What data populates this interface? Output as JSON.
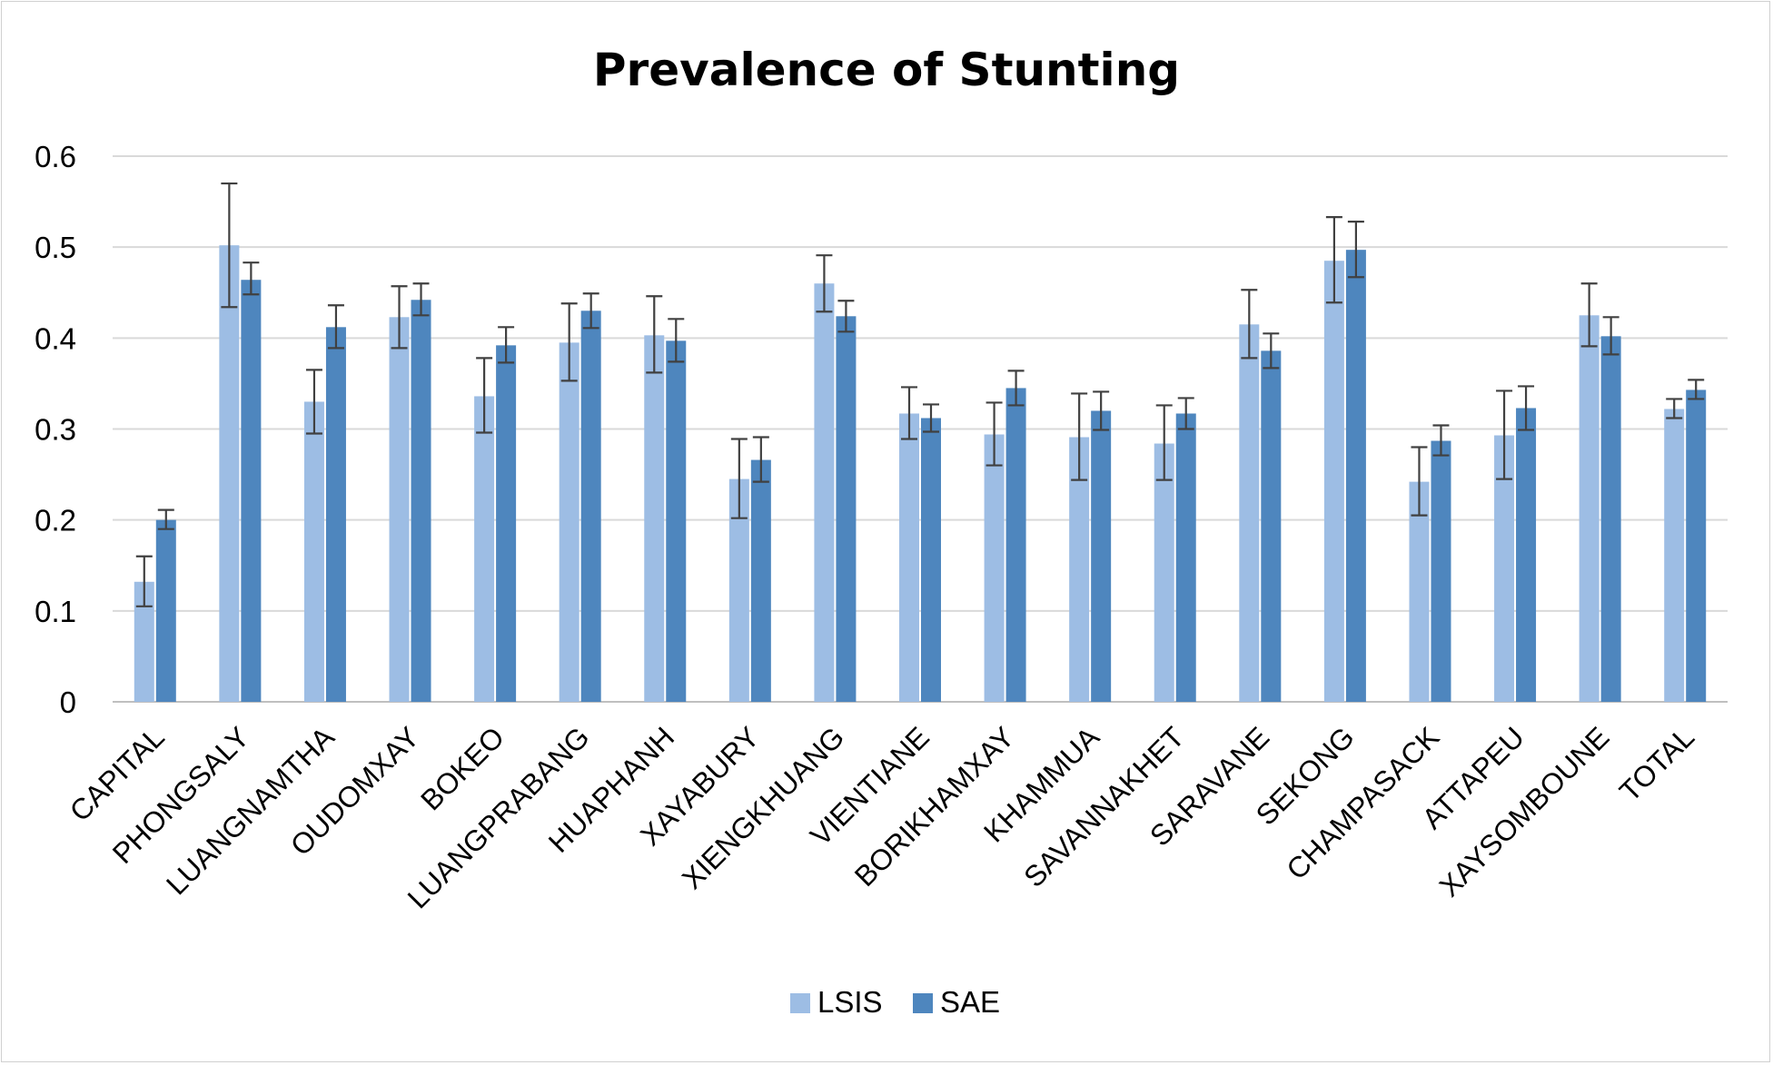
{
  "chart_data": {
    "type": "bar",
    "title": "Prevalence of Stunting",
    "xlabel": "",
    "ylabel": "",
    "ylim": [
      0,
      0.6
    ],
    "yticks": [
      0,
      0.1,
      0.2,
      0.3,
      0.4,
      0.5,
      0.6
    ],
    "ytick_labels": [
      "0",
      "0.1",
      "0.2",
      "0.3",
      "0.4",
      "0.5",
      "0.6"
    ],
    "grid": true,
    "legend_position": "bottom",
    "error_bars": true,
    "categories": [
      "CAPITAL",
      "PHONGSALY",
      "LUANGNAMTHA",
      "OUDOMXAY",
      "BOKEO",
      "LUANGPRABANG",
      "HUAPHANH",
      "XAYABURY",
      "XIENGKHUANG",
      "VIENTIANE",
      "BORIKHAMXAY",
      "KHAMMUA",
      "SAVANNAKHET",
      "SARAVANE",
      "SEKONG",
      "CHAMPASACK",
      "ATTAPEU",
      "XAYSOMBOUNE",
      "TOTAL"
    ],
    "series": [
      {
        "name": "LSIS",
        "color": "#9dbde4",
        "values": [
          0.132,
          0.502,
          0.33,
          0.423,
          0.336,
          0.395,
          0.403,
          0.245,
          0.46,
          0.317,
          0.294,
          0.291,
          0.284,
          0.415,
          0.485,
          0.242,
          0.293,
          0.425,
          0.322
        ],
        "err_low": [
          0.105,
          0.434,
          0.295,
          0.389,
          0.296,
          0.353,
          0.362,
          0.202,
          0.429,
          0.289,
          0.26,
          0.244,
          0.244,
          0.378,
          0.439,
          0.205,
          0.245,
          0.391,
          0.312
        ],
        "err_high": [
          0.16,
          0.57,
          0.365,
          0.457,
          0.378,
          0.438,
          0.446,
          0.289,
          0.491,
          0.346,
          0.329,
          0.339,
          0.326,
          0.453,
          0.533,
          0.28,
          0.342,
          0.46,
          0.333
        ]
      },
      {
        "name": "SAE",
        "color": "#4e86be",
        "values": [
          0.2,
          0.464,
          0.412,
          0.442,
          0.392,
          0.43,
          0.397,
          0.266,
          0.424,
          0.312,
          0.345,
          0.32,
          0.317,
          0.386,
          0.497,
          0.287,
          0.323,
          0.402,
          0.343
        ],
        "err_low": [
          0.19,
          0.448,
          0.389,
          0.425,
          0.373,
          0.411,
          0.374,
          0.242,
          0.407,
          0.297,
          0.326,
          0.299,
          0.3,
          0.367,
          0.467,
          0.271,
          0.299,
          0.382,
          0.333
        ],
        "err_high": [
          0.211,
          0.483,
          0.436,
          0.46,
          0.412,
          0.449,
          0.421,
          0.291,
          0.441,
          0.327,
          0.364,
          0.341,
          0.334,
          0.405,
          0.528,
          0.304,
          0.347,
          0.423,
          0.354
        ]
      }
    ]
  }
}
